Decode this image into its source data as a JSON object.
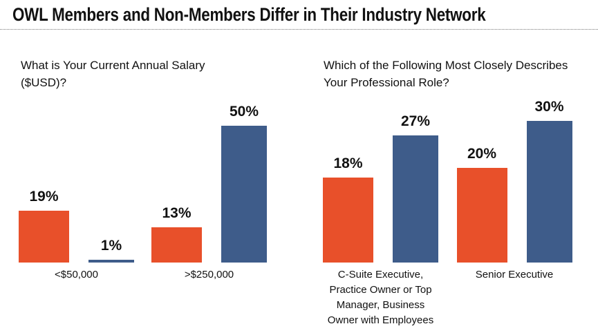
{
  "title": "OWL Members and Non-Members Differ in Their Industry Network",
  "chart_data": [
    {
      "type": "bar",
      "title": "What is Your Current Annual Salary ($USD)?",
      "categories": [
        "<$50,000",
        ">$250,000"
      ],
      "series": [
        {
          "color": "#e8502a",
          "values": [
            19,
            13
          ],
          "value_labels": [
            "19%",
            "13%"
          ]
        },
        {
          "color": "#3e5c8a",
          "values": [
            1,
            50
          ],
          "value_labels": [
            "1%",
            "50%"
          ]
        }
      ],
      "ylim": [
        0,
        50
      ]
    },
    {
      "type": "bar",
      "title": "Which of the Following Most Closely Describes Your Professional Role?",
      "categories": [
        "C-Suite Executive, Practice Owner or Top Manager, Business Owner with Employees",
        "Senior Executive"
      ],
      "series": [
        {
          "color": "#e8502a",
          "values": [
            18,
            20
          ],
          "value_labels": [
            "18%",
            "20%"
          ]
        },
        {
          "color": "#3e5c8a",
          "values": [
            27,
            30
          ],
          "value_labels": [
            "27%",
            "30%"
          ]
        }
      ],
      "ylim": [
        0,
        30
      ]
    }
  ]
}
